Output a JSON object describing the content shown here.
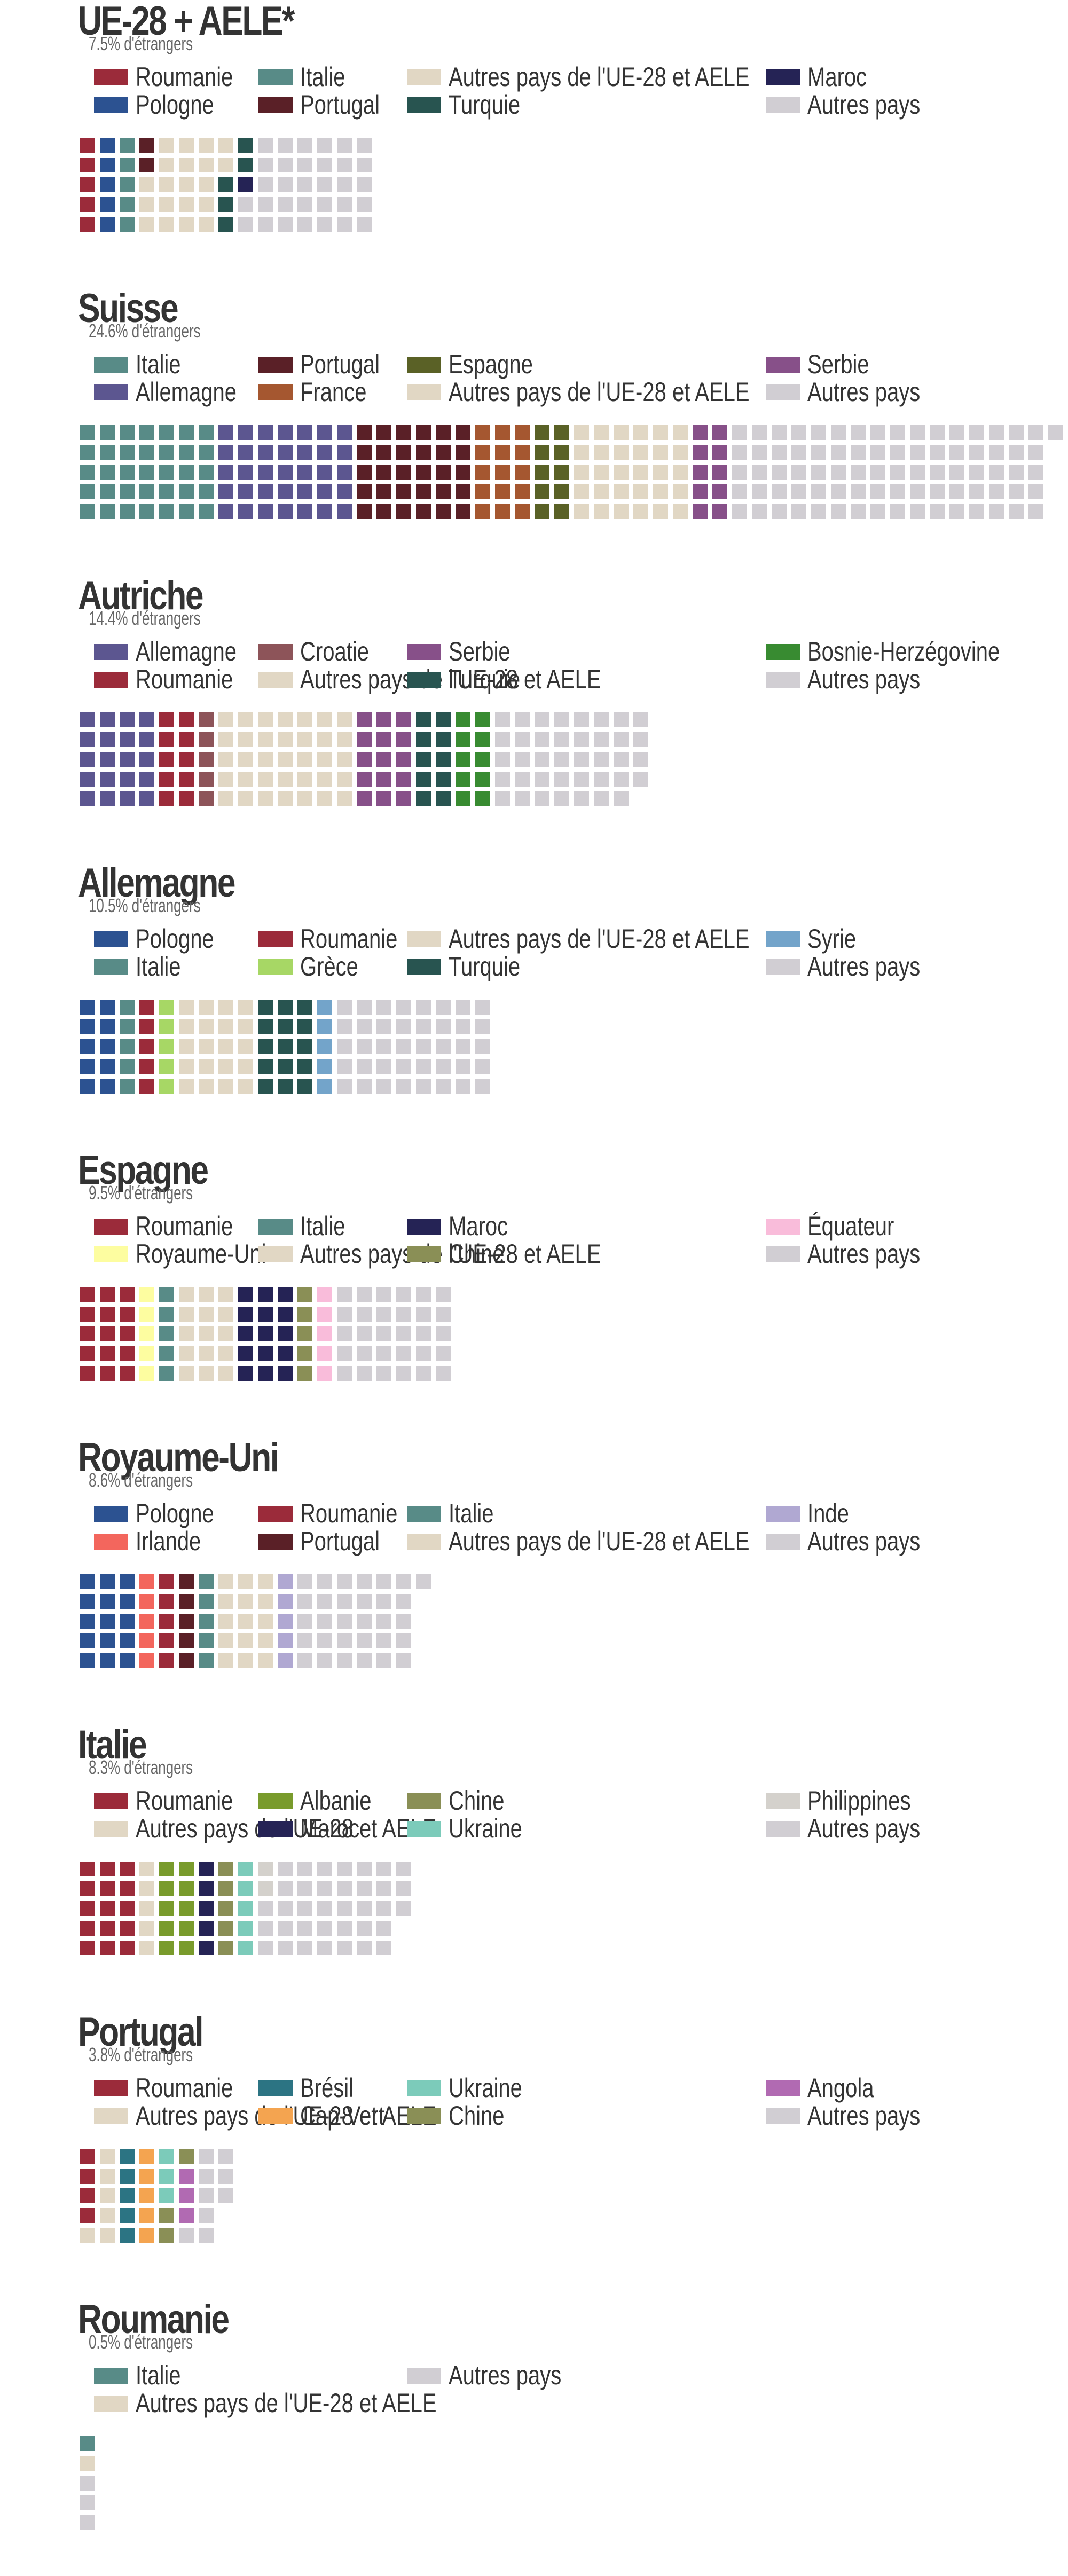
{
  "colors": {
    "Roumanie": "#9b2b3a",
    "Pologne": "#2c5291",
    "Italie": "#588b87",
    "Portugal": "#5a2027",
    "Autres pays de l'UE-28 et AELE": "#e1d7c4",
    "Turquie": "#285450",
    "Maroc": "#252355",
    "Autres pays": "#d1ced3",
    "Allemagne": "#5c5690",
    "France": "#a55730",
    "Espagne": "#5a6126",
    "Serbie": "#875089",
    "Croatie": "#8d5459",
    "Bosnie-Herzégovine": "#388b31",
    "Grèce": "#a7d765",
    "Syrie": "#73a4ca",
    "Royaume-Uni": "#fdfda0",
    "Équateur": "#f9bcda",
    "Chine": "#8a8f56",
    "Irlande": "#f3665d",
    "Inde": "#b0a8d2",
    "Albanie": "#799b2c",
    "Ukraine": "#7ccbba",
    "Philippines": "#d4d1cc",
    "Brésil": "#2c7483",
    "Cap-Vert": "#f4a450",
    "Angola": "#b16ab2"
  },
  "panels": [
    {
      "title": "UE-28 + AELE*",
      "subtitle": "7.5% d'étrangers",
      "legend": [
        "Roumanie",
        "Pologne",
        "Italie",
        "Portugal",
        "Autres pays de l'UE-28 et AELE",
        "Turquie",
        "Maroc",
        "Autres pays"
      ]
    },
    {
      "title": "Suisse",
      "subtitle": "24.6% d'étrangers",
      "legend": [
        "Italie",
        "Allemagne",
        "Portugal",
        "France",
        "Espagne",
        "Autres pays de l'UE-28 et AELE",
        "Serbie",
        "Autres pays"
      ]
    },
    {
      "title": "Autriche",
      "subtitle": "14.4% d'étrangers",
      "legend": [
        "Allemagne",
        "Roumanie",
        "Croatie",
        "Autres pays de l'UE-28 et AELE",
        "Serbie",
        "Turquie",
        "Bosnie-Herzégovine",
        "Autres pays"
      ]
    },
    {
      "title": "Allemagne",
      "subtitle": "10.5% d'étrangers",
      "legend": [
        "Pologne",
        "Italie",
        "Roumanie",
        "Grèce",
        "Autres pays de l'UE-28 et AELE",
        "Turquie",
        "Syrie",
        "Autres pays"
      ]
    },
    {
      "title": "Espagne",
      "subtitle": "9.5% d'étrangers",
      "legend": [
        "Roumanie",
        "Royaume-Uni",
        "Italie",
        "Autres pays de l'UE-28 et AELE",
        "Maroc",
        "Chine",
        "Équateur",
        "Autres pays"
      ]
    },
    {
      "title": "Royaume-Uni",
      "subtitle": "8.6% d'étrangers",
      "legend": [
        "Pologne",
        "Irlande",
        "Roumanie",
        "Portugal",
        "Italie",
        "Autres pays de l'UE-28 et AELE",
        "Inde",
        "Autres pays"
      ]
    },
    {
      "title": "Italie",
      "subtitle": "8.3% d'étrangers",
      "legend": [
        "Roumanie",
        "Autres pays de l'UE-28 et AELE",
        "Albanie",
        "Maroc",
        "Chine",
        "Ukraine",
        "Philippines",
        "Autres pays"
      ]
    },
    {
      "title": "Portugal",
      "subtitle": "3.8% d'étrangers",
      "legend": [
        "Roumanie",
        "Autres pays de l'UE-28 et AELE",
        "Brésil",
        "Cap-Vert",
        "Ukraine",
        "Chine",
        "Angola",
        "Autres pays"
      ]
    },
    {
      "title": "Roumanie",
      "subtitle": "0.5% d'étrangers",
      "legend": [
        "Italie",
        "Autres pays de l'UE-28 et AELE",
        "Autres pays"
      ]
    }
  ],
  "chart_data": [
    {
      "type": "waffle",
      "title": "UE-28 + AELE*",
      "subtitle": "7.5% d'étrangers",
      "total_squares": 75,
      "series": [
        {
          "name": "Roumanie",
          "values": [
            5
          ]
        },
        {
          "name": "Pologne",
          "values": [
            5
          ]
        },
        {
          "name": "Italie",
          "values": [
            5
          ]
        },
        {
          "name": "Portugal",
          "values": [
            2
          ]
        },
        {
          "name": "Autres pays de l'UE-28 et AELE",
          "values": [
            20
          ]
        },
        {
          "name": "Turquie",
          "values": [
            5
          ]
        },
        {
          "name": "Maroc",
          "values": [
            1
          ]
        },
        {
          "name": "Autres pays",
          "values": [
            32
          ]
        }
      ]
    },
    {
      "type": "waffle",
      "title": "Suisse",
      "subtitle": "24.6% d'étrangers",
      "total_squares": 246,
      "series": [
        {
          "name": "Italie",
          "values": [
            35
          ]
        },
        {
          "name": "Allemagne",
          "values": [
            35
          ]
        },
        {
          "name": "Portugal",
          "values": [
            30
          ]
        },
        {
          "name": "France",
          "values": [
            15
          ]
        },
        {
          "name": "Espagne",
          "values": [
            10
          ]
        },
        {
          "name": "Autres pays de l'UE-28 et AELE",
          "values": [
            30
          ]
        },
        {
          "name": "Serbie",
          "values": [
            10
          ]
        },
        {
          "name": "Autres pays",
          "values": [
            81
          ]
        }
      ]
    },
    {
      "type": "waffle",
      "title": "Autriche",
      "subtitle": "14.4% d'étrangers",
      "total_squares": 144,
      "series": [
        {
          "name": "Allemagne",
          "values": [
            20
          ]
        },
        {
          "name": "Roumanie",
          "values": [
            10
          ]
        },
        {
          "name": "Croatie",
          "values": [
            5
          ]
        },
        {
          "name": "Autres pays de l'UE-28 et AELE",
          "values": [
            35
          ]
        },
        {
          "name": "Serbie",
          "values": [
            15
          ]
        },
        {
          "name": "Turquie",
          "values": [
            10
          ]
        },
        {
          "name": "Bosnie-Herzégovine",
          "values": [
            10
          ]
        },
        {
          "name": "Autres pays",
          "values": [
            39
          ]
        }
      ]
    },
    {
      "type": "waffle",
      "title": "Allemagne",
      "subtitle": "10.5% d'étrangers",
      "total_squares": 105,
      "series": [
        {
          "name": "Pologne",
          "values": [
            10
          ]
        },
        {
          "name": "Italie",
          "values": [
            5
          ]
        },
        {
          "name": "Roumanie",
          "values": [
            5
          ]
        },
        {
          "name": "Grèce",
          "values": [
            5
          ]
        },
        {
          "name": "Autres pays de l'UE-28 et AELE",
          "values": [
            20
          ]
        },
        {
          "name": "Turquie",
          "values": [
            15
          ]
        },
        {
          "name": "Syrie",
          "values": [
            5
          ]
        },
        {
          "name": "Autres pays",
          "values": [
            40
          ]
        }
      ]
    },
    {
      "type": "waffle",
      "title": "Espagne",
      "subtitle": "9.5% d'étrangers",
      "total_squares": 95,
      "series": [
        {
          "name": "Roumanie",
          "values": [
            15
          ]
        },
        {
          "name": "Royaume-Uni",
          "values": [
            5
          ]
        },
        {
          "name": "Italie",
          "values": [
            5
          ]
        },
        {
          "name": "Autres pays de l'UE-28 et AELE",
          "values": [
            15
          ]
        },
        {
          "name": "Maroc",
          "values": [
            15
          ]
        },
        {
          "name": "Chine",
          "values": [
            5
          ]
        },
        {
          "name": "Équateur",
          "values": [
            5
          ]
        },
        {
          "name": "Autres pays",
          "values": [
            30
          ]
        }
      ]
    },
    {
      "type": "waffle",
      "title": "Royaume-Uni",
      "subtitle": "8.6% d'étrangers",
      "total_squares": 86,
      "series": [
        {
          "name": "Pologne",
          "values": [
            15
          ]
        },
        {
          "name": "Irlande",
          "values": [
            5
          ]
        },
        {
          "name": "Roumanie",
          "values": [
            5
          ]
        },
        {
          "name": "Portugal",
          "values": [
            5
          ]
        },
        {
          "name": "Italie",
          "values": [
            5
          ]
        },
        {
          "name": "Autres pays de l'UE-28 et AELE",
          "values": [
            15
          ]
        },
        {
          "name": "Inde",
          "values": [
            5
          ]
        },
        {
          "name": "Autres pays",
          "values": [
            31
          ]
        }
      ]
    },
    {
      "type": "waffle",
      "title": "Italie",
      "subtitle": "8.3% d'étrangers",
      "total_squares": 83,
      "series": [
        {
          "name": "Roumanie",
          "values": [
            15
          ]
        },
        {
          "name": "Autres pays de l'UE-28 et AELE",
          "values": [
            5
          ]
        },
        {
          "name": "Albanie",
          "values": [
            10
          ]
        },
        {
          "name": "Maroc",
          "values": [
            5
          ]
        },
        {
          "name": "Chine",
          "values": [
            5
          ]
        },
        {
          "name": "Ukraine",
          "values": [
            5
          ]
        },
        {
          "name": "Philippines",
          "values": [
            2
          ]
        },
        {
          "name": "Autres pays",
          "values": [
            36
          ]
        }
      ]
    },
    {
      "type": "waffle",
      "title": "Portugal",
      "subtitle": "3.8% d'étrangers",
      "total_squares": 38,
      "series": [
        {
          "name": "Roumanie",
          "values": [
            4
          ]
        },
        {
          "name": "Autres pays de l'UE-28 et AELE",
          "values": [
            6
          ]
        },
        {
          "name": "Brésil",
          "values": [
            5
          ]
        },
        {
          "name": "Cap-Vert",
          "values": [
            5
          ]
        },
        {
          "name": "Ukraine",
          "values": [
            3
          ]
        },
        {
          "name": "Chine",
          "values": [
            3
          ]
        },
        {
          "name": "Angola",
          "values": [
            3
          ]
        },
        {
          "name": "Autres pays",
          "values": [
            9
          ]
        }
      ]
    },
    {
      "type": "waffle",
      "title": "Roumanie",
      "subtitle": "0.5% d'étrangers",
      "total_squares": 5,
      "series": [
        {
          "name": "Italie",
          "values": [
            1
          ]
        },
        {
          "name": "Autres pays de l'UE-28 et AELE",
          "values": [
            1
          ]
        },
        {
          "name": "Autres pays",
          "values": [
            3
          ]
        }
      ]
    }
  ]
}
